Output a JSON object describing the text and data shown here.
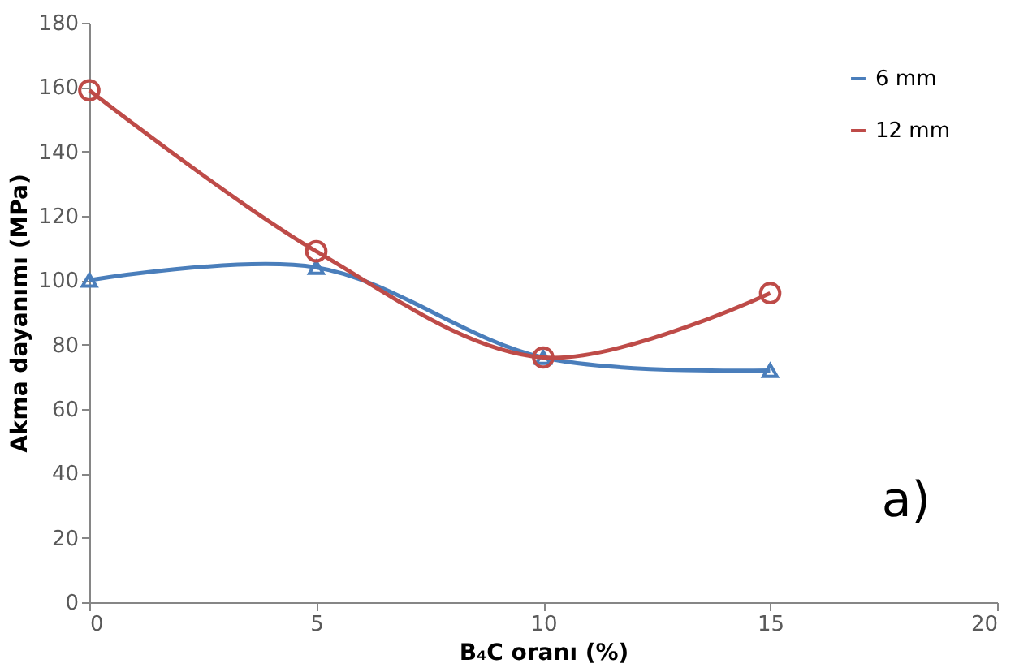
{
  "chart_data": {
    "type": "line",
    "xlabel": "B₄C oranı (%)",
    "ylabel": "Akma dayanımı (MPa)",
    "x": [
      0,
      5,
      10,
      15
    ],
    "series": [
      {
        "name": "6 mm",
        "color": "#4a7ebb",
        "marker": "triangle",
        "values": [
          100,
          104,
          76,
          72
        ]
      },
      {
        "name": "12 mm",
        "color": "#be4b48",
        "marker": "circle",
        "values": [
          159,
          109,
          76,
          96
        ]
      }
    ],
    "xlim": [
      0,
      20
    ],
    "xticks": [
      0,
      5,
      10,
      15,
      20
    ],
    "ylim": [
      0,
      180
    ],
    "yticks": [
      0,
      20,
      40,
      60,
      80,
      100,
      120,
      140,
      160,
      180
    ],
    "grid": false,
    "legend": "top right",
    "line_style": "solid",
    "annotations": [
      "a)"
    ]
  }
}
